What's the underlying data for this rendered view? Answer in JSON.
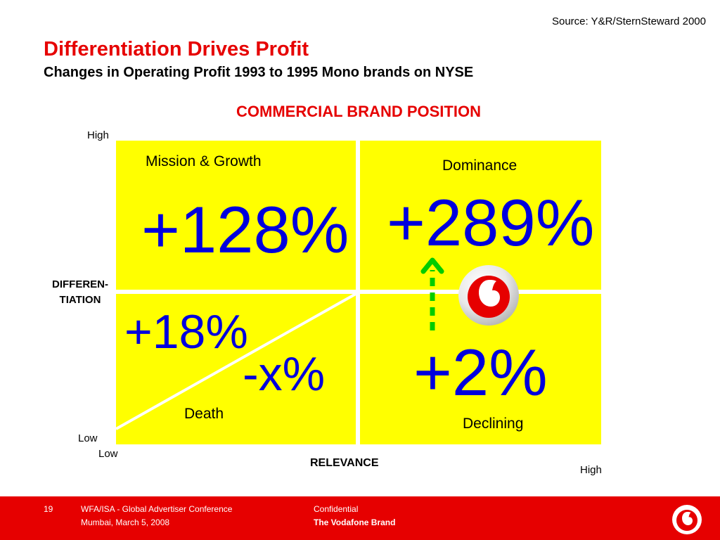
{
  "header": {
    "source": "Source: Y&R/SternSteward 2000",
    "title": "Differentiation Drives Profit",
    "subtitle": "Changes in Operating Profit 1993 to 1995 Mono brands on NYSE"
  },
  "matrix": {
    "heading": "COMMERCIAL BRAND POSITION",
    "y_axis": {
      "label": "DIFFEREN-TIATION",
      "label_line1": "DIFFEREN-",
      "label_line2": "TIATION",
      "high": "High",
      "low": "Low"
    },
    "x_axis": {
      "label": "RELEVANCE",
      "low": "Low",
      "high": "High"
    },
    "quadrants": {
      "top_left": {
        "name": "Mission & Growth",
        "value": "+128%"
      },
      "top_right": {
        "name": "Dominance",
        "value": "+289%"
      },
      "bottom_left": {
        "name": "Death",
        "value_upper": "+18%",
        "value_lower": "-x%"
      },
      "bottom_right": {
        "name": "Declining",
        "value": "+2%"
      }
    },
    "colors": {
      "quadrant": "#ffff00",
      "values": "#0000dd",
      "arrow": "#00cc00",
      "accent": "#e60000"
    },
    "icons": {
      "brand_logo": "vodafone-logo-icon",
      "arrow": "dashed-up-arrow-icon"
    }
  },
  "footer": {
    "page_number": "19",
    "conference": "WFA/ISA - Global Advertiser Conference",
    "location_date": "Mumbai, March 5, 2008",
    "confidential": "Confidential",
    "brand_label": "The Vodafone Brand",
    "logo_icon": "vodafone-logo-icon"
  }
}
